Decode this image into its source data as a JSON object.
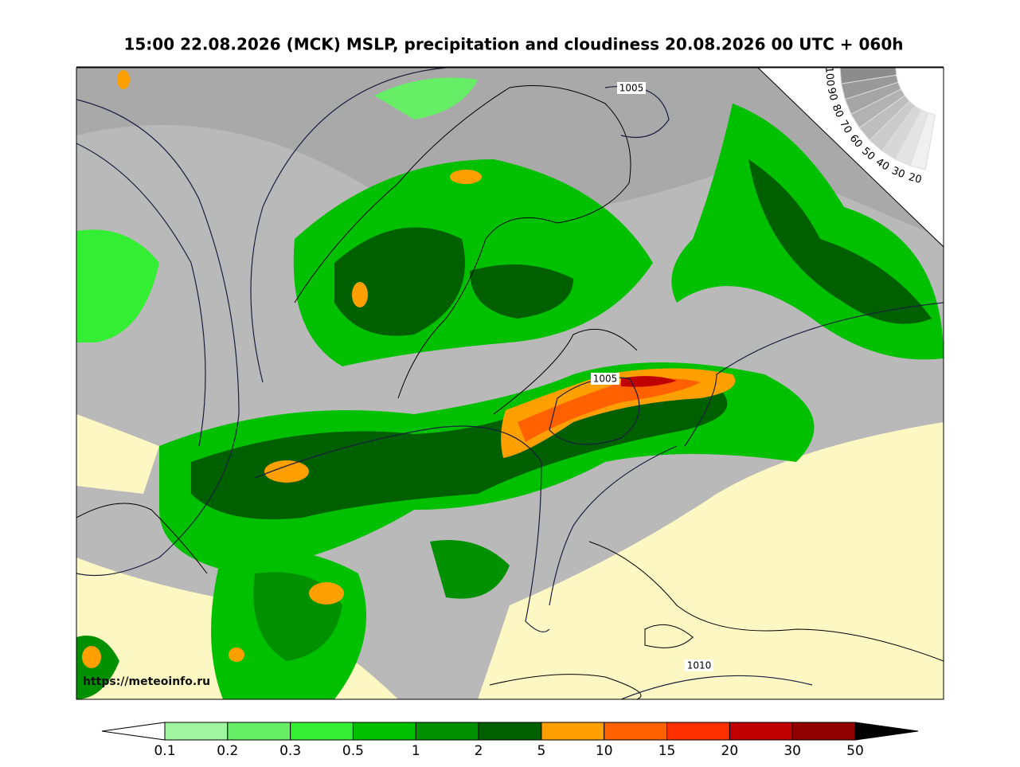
{
  "title": "15:00 22.08.2026 (MCK) MSLP, precipitation and cloudiness 20.08.2026 00 UTC + 060h",
  "isobar_labels": [
    "1005",
    "1005",
    "1010"
  ],
  "source": "https://meteoinfo.ru",
  "cloud_scale": {
    "labels": [
      "100",
      "90",
      "80",
      "70",
      "60",
      "50",
      "40",
      "30",
      "20"
    ]
  },
  "precip_scale": {
    "ticks": [
      "0.1",
      "0.2",
      "0.3",
      "0.5",
      "1",
      "2",
      "5",
      "10",
      "15",
      "20",
      "30",
      "50"
    ],
    "colors": [
      "#a0f5a0",
      "#66ee66",
      "#33ee33",
      "#00c000",
      "#009000",
      "#006000",
      "#ffa000",
      "#ff6000",
      "#ff3000",
      "#c00000",
      "#900000"
    ]
  }
}
